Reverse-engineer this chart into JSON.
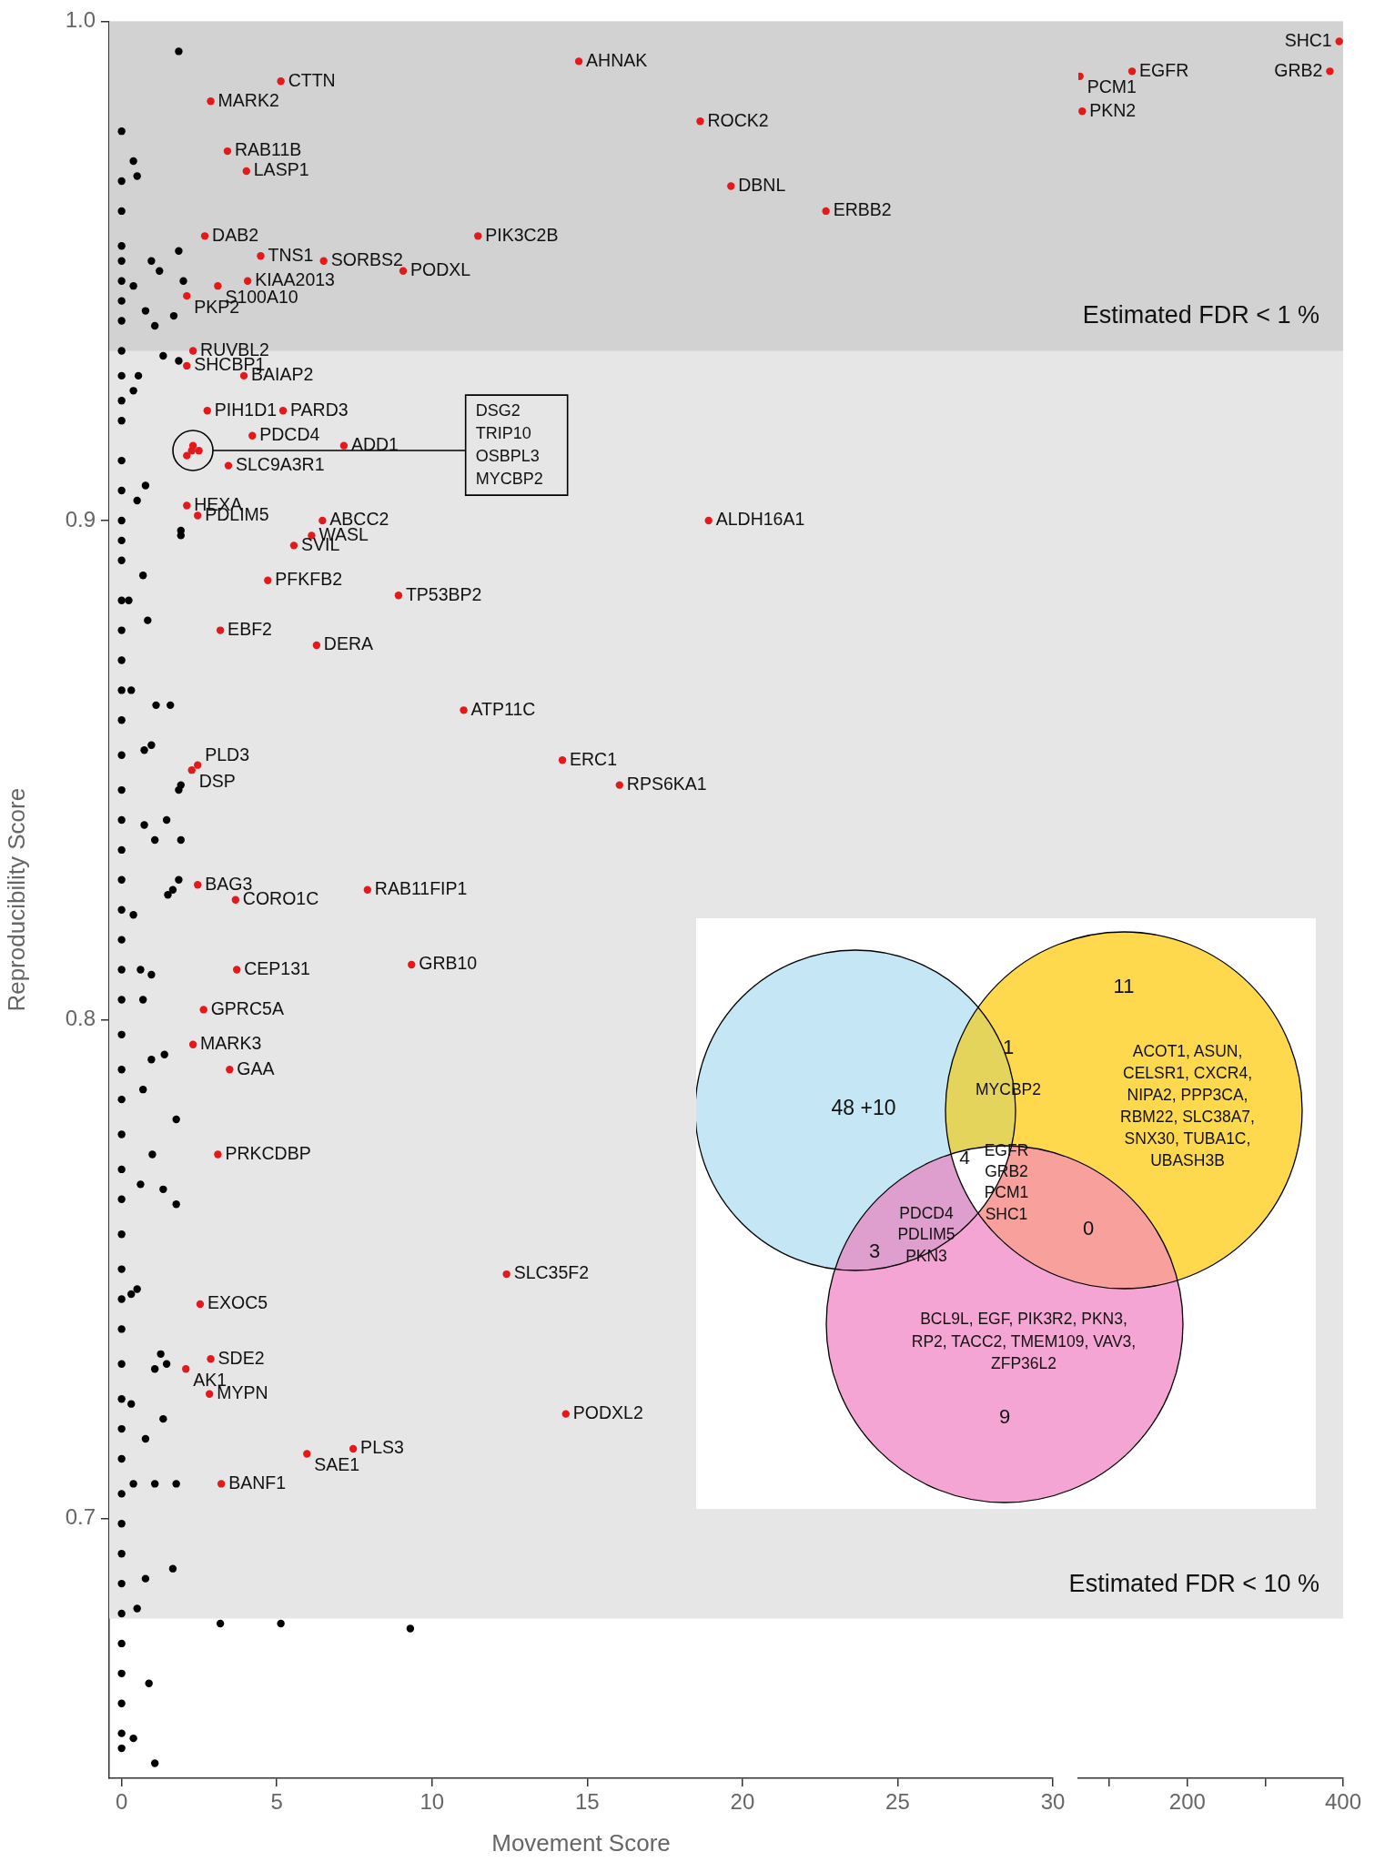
{
  "chart_data": [
    {
      "type": "scatter",
      "ylabel": "Reproducibility Score",
      "xlabel": "Movement Score",
      "xlim": [
        -0.4,
        30
      ],
      "xticks": [
        0,
        5,
        10,
        15,
        20,
        25,
        30
      ],
      "ylim": [
        0.648,
        1.0
      ],
      "yticks": [
        0.7,
        0.8,
        0.9,
        {
          "value": 1.0,
          "label": "1.0"
        }
      ],
      "marker": "circle",
      "bands": [
        {
          "axis": "y",
          "from": 0.68,
          "to": 1.0,
          "color": "#e6e6e6"
        },
        {
          "axis": "y",
          "from": 0.934,
          "to": 1.0,
          "color": "#d2d2d2"
        }
      ],
      "annotations": [
        "DSG2\nTRIP10\nOSBPL3\nMYCBP2"
      ],
      "series": [
        {
          "color": "#000000",
          "x": [
            0,
            0,
            0,
            0,
            0,
            0,
            0,
            0,
            0,
            0,
            0,
            0,
            0,
            0,
            0,
            0,
            0,
            0,
            0,
            0,
            0,
            0,
            0,
            0,
            0,
            0,
            0,
            0,
            0,
            0,
            0,
            0,
            0,
            0,
            0,
            0,
            0,
            0,
            0,
            0,
            0,
            0,
            0,
            0,
            0,
            0,
            0,
            0,
            0,
            0,
            0,
            0,
            0,
            0,
            0,
            1.84,
            0.38,
            0.5,
            1.84,
            0.96,
            1.22,
            0.38,
            1.99,
            0.77,
            1.68,
            1.07,
            1.34,
            1.84,
            0.54,
            0.38,
            0.77,
            0.5,
            1.91,
            1.91,
            0.69,
            0.84,
            0.23,
            0.31,
            1.11,
            1.57,
            0.73,
            0.96,
            1.91,
            1.84,
            1.45,
            0.73,
            1.07,
            1.91,
            1.84,
            1.65,
            1.49,
            0.38,
            0.61,
            0.96,
            0.69,
            0.96,
            1.38,
            0.69,
            1.76,
            0.99,
            0.61,
            1.34,
            1.76,
            0.5,
            0.31,
            1.26,
            1.07,
            1.45,
            0.31,
            1.34,
            0.77,
            1.07,
            0.38,
            1.76,
            1.65,
            0.77,
            0.5,
            3.18,
            5.13,
            9.3,
            0.88,
            0.38,
            1.07
          ],
          "values": [
            0.978,
            0.968,
            0.962,
            0.955,
            0.952,
            0.948,
            0.944,
            0.94,
            0.934,
            0.929,
            0.924,
            0.92,
            0.912,
            0.906,
            0.9,
            0.896,
            0.892,
            0.884,
            0.878,
            0.872,
            0.866,
            0.86,
            0.853,
            0.846,
            0.84,
            0.834,
            0.828,
            0.822,
            0.816,
            0.81,
            0.804,
            0.797,
            0.79,
            0.784,
            0.777,
            0.77,
            0.764,
            0.757,
            0.75,
            0.744,
            0.738,
            0.731,
            0.724,
            0.718,
            0.712,
            0.705,
            0.699,
            0.693,
            0.687,
            0.681,
            0.675,
            0.669,
            0.663,
            0.657,
            0.654,
            0.994,
            0.972,
            0.969,
            0.954,
            0.952,
            0.95,
            0.947,
            0.948,
            0.942,
            0.941,
            0.939,
            0.933,
            0.932,
            0.929,
            0.926,
            0.907,
            0.904,
            0.897,
            0.898,
            0.889,
            0.88,
            0.884,
            0.866,
            0.863,
            0.863,
            0.854,
            0.855,
            0.847,
            0.846,
            0.84,
            0.839,
            0.836,
            0.836,
            0.828,
            0.826,
            0.825,
            0.821,
            0.81,
            0.809,
            0.804,
            0.792,
            0.793,
            0.786,
            0.78,
            0.773,
            0.767,
            0.766,
            0.763,
            0.746,
            0.745,
            0.733,
            0.73,
            0.731,
            0.723,
            0.72,
            0.716,
            0.707,
            0.707,
            0.707,
            0.69,
            0.688,
            0.682,
            0.679,
            0.679,
            0.678,
            0.667,
            0.656,
            0.651
          ]
        },
        {
          "color": "#e31a1c",
          "x": [
            5.13,
            2.87,
            14.73,
            3.41,
            4.02,
            18.64,
            19.63,
            22.69,
            11.48,
            2.68,
            4.48,
            6.51,
            9.07,
            4.06,
            3.1,
            2.1,
            2.3,
            2.1,
            3.94,
            2.76,
            5.2,
            4.21,
            7.16,
            3.44,
            2.1,
            2.45,
            6.47,
            6.12,
            5.55,
            18.91,
            4.71,
            8.92,
            3.18,
            6.28,
            11.02,
            14.2,
            16.04,
            2.45,
            2.26,
            2.45,
            3.67,
            7.92,
            3.71,
            9.34,
            2.64,
            2.3,
            3.48,
            3.1,
            12.4,
            2.53,
            2.87,
            2.07,
            2.83,
            14.31,
            7.46,
            5.97,
            3.21,
            2.1,
            2.3,
            2.49,
            2.26
          ],
          "values": [
            0.988,
            0.984,
            0.992,
            0.974,
            0.97,
            0.98,
            0.967,
            0.962,
            0.957,
            0.957,
            0.953,
            0.952,
            0.95,
            0.948,
            0.947,
            0.945,
            0.934,
            0.931,
            0.929,
            0.922,
            0.922,
            0.917,
            0.915,
            0.911,
            0.903,
            0.901,
            0.9,
            0.897,
            0.895,
            0.9,
            0.888,
            0.885,
            0.878,
            0.875,
            0.862,
            0.852,
            0.847,
            0.851,
            0.85,
            0.827,
            0.824,
            0.826,
            0.81,
            0.811,
            0.802,
            0.795,
            0.79,
            0.773,
            0.749,
            0.743,
            0.732,
            0.73,
            0.725,
            0.721,
            0.714,
            0.713,
            0.707,
            0.913,
            0.915,
            0.914,
            0.914
          ],
          "value_labels": [
            "CTTN",
            "MARK2",
            "AHNAK",
            "RAB11B",
            "LASP1",
            "ROCK2",
            "DBNL",
            "ERBB2",
            "PIK3C2B",
            "DAB2",
            "TNS1",
            "SORBS2",
            "PODXL",
            "KIAA2013",
            "S100A10",
            "PKP2",
            "RUVBL2",
            "SHCBP1",
            "BAIAP2",
            "PIH1D1",
            "PARD3",
            "PDCD4",
            "ADD1",
            "SLC9A3R1",
            "HEXA",
            "PDLIM5",
            "ABCC2",
            "WASL",
            "SVIL",
            "ALDH16A1",
            "PFKFB2",
            "TP53BP2",
            "EBF2",
            "DERA",
            "ATP11C",
            "ERC1",
            "RPS6KA1",
            "PLD3",
            "DSP",
            "BAG3",
            "CORO1C",
            "RAB11FIP1",
            "CEP131",
            "GRB10",
            "GPRC5A",
            "MARK3",
            "GAA",
            "PRKCDBP",
            "SLC35F2",
            "EXOC5",
            "SDE2",
            "AK1",
            "MYPN",
            "PODXL2",
            "PLS3",
            "SAE1",
            "BANF1",
            null,
            null,
            null,
            null
          ]
        }
      ]
    },
    {
      "type": "scatter",
      "xlim": [
        60,
        400
      ],
      "xticks": [
        {
          "value": 100,
          "label": null
        },
        200,
        {
          "value": 300,
          "label": null
        },
        400
      ],
      "ylim": [
        0.648,
        1.0
      ],
      "tick_labels": "x",
      "marker": "circle",
      "bands": [
        {
          "axis": "y",
          "from": 0.68,
          "to": 1.0,
          "color": "#e6e6e6",
          "label": "Estimated FDR < 10 %"
        },
        {
          "axis": "y",
          "from": 0.934,
          "to": 1.0,
          "color": "#d2d2d2",
          "label": "Estimated FDR < 1 %"
        }
      ],
      "series": [
        {
          "color": "#e31a1c",
          "x": [
            395,
            383,
            129,
            62,
            65
          ],
          "values": [
            0.996,
            0.99,
            0.99,
            0.989,
            0.982
          ],
          "value_labels": [
            "SHC1",
            "GRB2",
            "EGFR",
            "PCM1",
            "PKN2"
          ]
        }
      ]
    },
    {
      "type": "other",
      "colors": [
        "#c5e6f5",
        "#fed94e",
        "#f5a5d3",
        "#e4d45c",
        "#df9fce",
        "#f7a09c",
        "#ffffff"
      ],
      "annotations": [
        "11",
        "ACOT1, ASUN,",
        "CELSR1, CXCR4,",
        "NIPA2, PPP3CA,",
        "RBM22, SLC38A7,",
        "SNX30, TUBA1C,",
        "UBASH3B",
        "1",
        "MYCBP2",
        "48 +10",
        "4",
        "EGFR",
        "GRB2",
        "PCM1",
        "SHC1",
        "3",
        "PDCD4",
        "PDLIM5",
        "PKN3",
        "0",
        "BCL9L, EGF, PIK3R2, PKN3,",
        "RP2, TACC2, TMEM109, VAV3,",
        "ZFP36L2",
        "9"
      ]
    }
  ]
}
